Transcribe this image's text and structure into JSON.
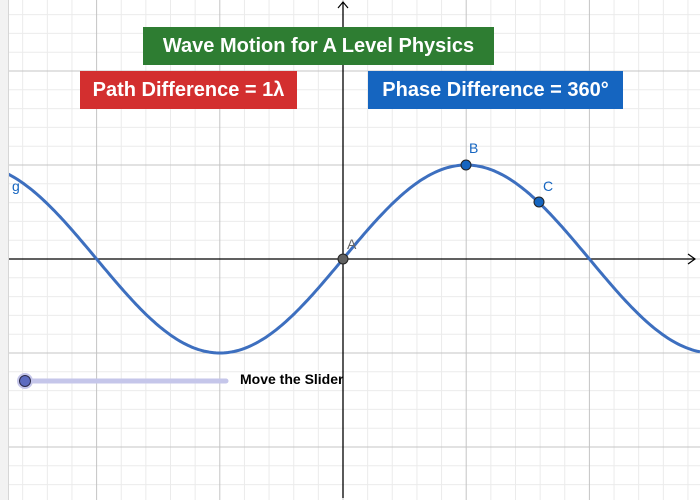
{
  "title": "Wave Motion for A Level Physics",
  "path_difference": "Path Difference = 1λ",
  "phase_difference": "Phase Difference = 360°",
  "curve_label": "g",
  "points": {
    "A": {
      "label": "A",
      "color": "#616161"
    },
    "B": {
      "label": "B",
      "color": "#1565c0"
    },
    "C": {
      "label": "C",
      "color": "#1565c0"
    }
  },
  "slider": {
    "label": "Move the Slider",
    "value": 0,
    "track_color": "#c5c6ea",
    "knob_color": "#5c6bc0"
  },
  "colors": {
    "title_bg": "#2e7d32",
    "path_bg": "#d32f2f",
    "phase_bg": "#1565c0",
    "curve": "#3d6fbf"
  },
  "chart_data": {
    "type": "line",
    "title": "Wave Motion for A Level Physics",
    "function": "g(x) = sin(x)",
    "annotations": [
      "Path Difference = 1λ",
      "Phase Difference = 360°"
    ],
    "points": [
      {
        "name": "A",
        "x": 0,
        "y": 0
      },
      {
        "name": "B",
        "x": 1,
        "y": 1
      },
      {
        "name": "C",
        "x": 1.6,
        "y": 0.59
      }
    ],
    "grid": true
  }
}
